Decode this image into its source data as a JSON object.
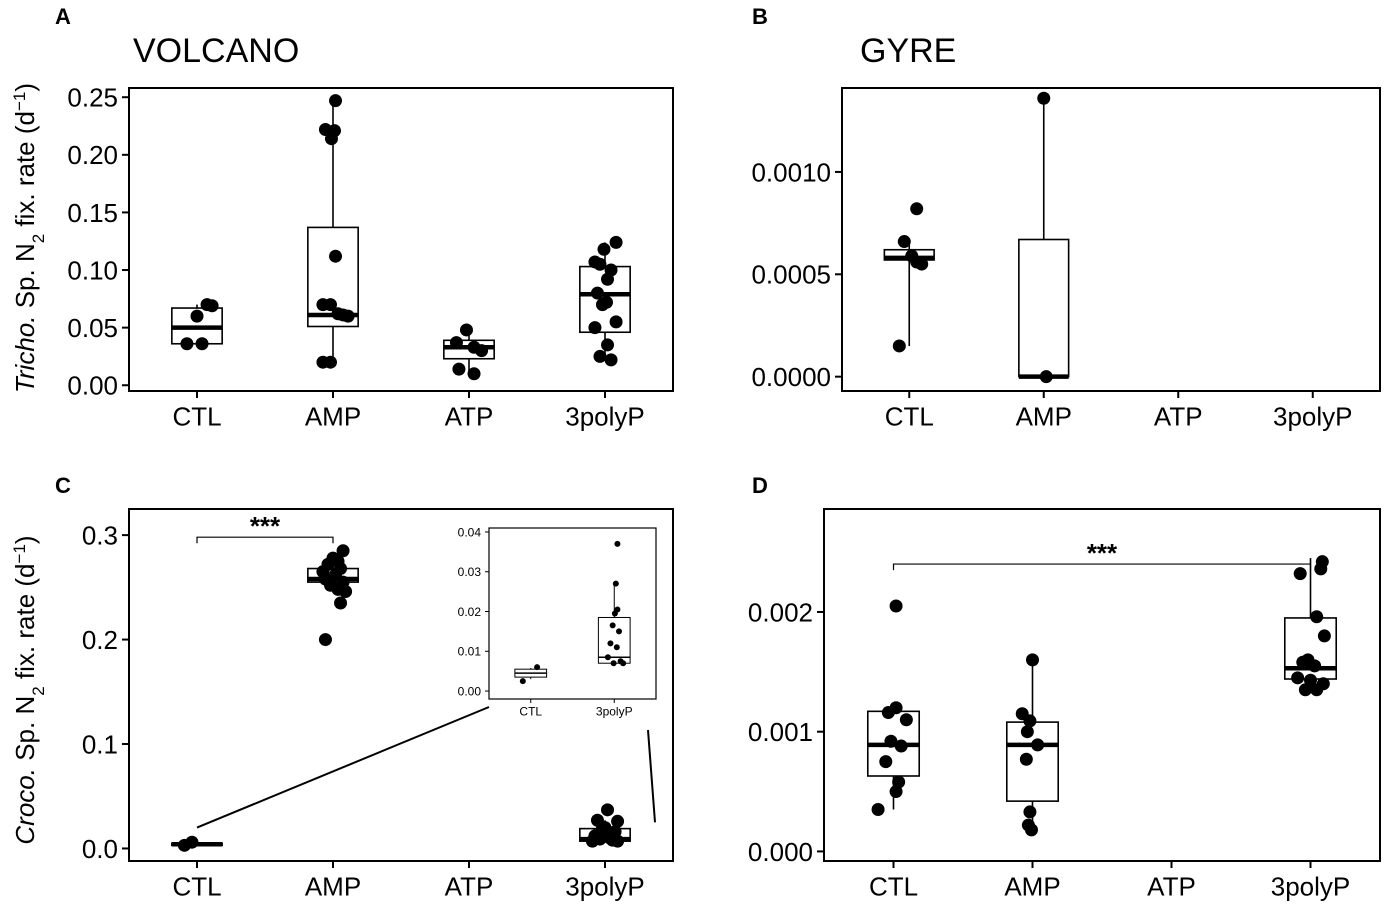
{
  "figure": {
    "ylabel_top": {
      "italic": "Tricho.",
      "pre": " Sp. N",
      "sub": "2",
      "post": " fix. rate (d",
      "sup": "−1",
      "end": ")"
    },
    "ylabel_bottom": {
      "italic": "Croco.",
      "pre": " Sp. N",
      "sub": "2",
      "post": " fix. rate (d",
      "sup": "−1",
      "end": ")"
    }
  },
  "chart_data": [
    {
      "panel": "A",
      "type": "box",
      "title": "VOLCANO",
      "categories": [
        "CTL",
        "AMP",
        "ATP",
        "3polyP"
      ],
      "ylim": [
        -0.005,
        0.258
      ],
      "yticks": [
        0.0,
        0.05,
        0.1,
        0.15,
        0.2,
        0.25
      ],
      "ytick_labels": [
        "0.00",
        "0.05",
        "0.10",
        "0.15",
        "0.20",
        "0.25"
      ],
      "boxes": [
        {
          "category": "CTL",
          "min": 0.036,
          "q1": 0.036,
          "median": 0.05,
          "q3": 0.067,
          "max": 0.07
        },
        {
          "category": "AMP",
          "min": 0.02,
          "q1": 0.051,
          "median": 0.061,
          "q3": 0.137,
          "max": 0.247
        },
        {
          "category": "ATP",
          "min": 0.01,
          "q1": 0.023,
          "median": 0.033,
          "q3": 0.039,
          "max": 0.048
        },
        {
          "category": "3polyP",
          "min": 0.022,
          "q1": 0.046,
          "median": 0.079,
          "q3": 0.103,
          "max": 0.124
        }
      ],
      "points": [
        {
          "category": "CTL",
          "y": 0.06,
          "jitter": 0.0
        },
        {
          "category": "CTL",
          "y": 0.07,
          "jitter": 0.2
        },
        {
          "category": "CTL",
          "y": 0.069,
          "jitter": 0.3
        },
        {
          "category": "CTL",
          "y": 0.036,
          "jitter": -0.2
        },
        {
          "category": "CTL",
          "y": 0.036,
          "jitter": 0.1
        },
        {
          "category": "AMP",
          "y": 0.247,
          "jitter": 0.05
        },
        {
          "category": "AMP",
          "y": 0.222,
          "jitter": -0.15
        },
        {
          "category": "AMP",
          "y": 0.221,
          "jitter": 0.03
        },
        {
          "category": "AMP",
          "y": 0.214,
          "jitter": -0.03
        },
        {
          "category": "AMP",
          "y": 0.112,
          "jitter": 0.05
        },
        {
          "category": "AMP",
          "y": 0.07,
          "jitter": -0.2
        },
        {
          "category": "AMP",
          "y": 0.07,
          "jitter": -0.05
        },
        {
          "category": "AMP",
          "y": 0.062,
          "jitter": 0.1
        },
        {
          "category": "AMP",
          "y": 0.061,
          "jitter": 0.2
        },
        {
          "category": "AMP",
          "y": 0.06,
          "jitter": 0.3
        },
        {
          "category": "AMP",
          "y": 0.02,
          "jitter": -0.2
        },
        {
          "category": "AMP",
          "y": 0.02,
          "jitter": -0.05
        },
        {
          "category": "ATP",
          "y": 0.048,
          "jitter": -0.05
        },
        {
          "category": "ATP",
          "y": 0.037,
          "jitter": -0.25
        },
        {
          "category": "ATP",
          "y": 0.033,
          "jitter": 0.1
        },
        {
          "category": "ATP",
          "y": 0.03,
          "jitter": 0.25
        },
        {
          "category": "ATP",
          "y": 0.014,
          "jitter": -0.2
        },
        {
          "category": "ATP",
          "y": 0.01,
          "jitter": 0.1
        },
        {
          "category": "3polyP",
          "y": 0.124,
          "jitter": 0.22
        },
        {
          "category": "3polyP",
          "y": 0.118,
          "jitter": -0.02
        },
        {
          "category": "3polyP",
          "y": 0.107,
          "jitter": -0.2
        },
        {
          "category": "3polyP",
          "y": 0.105,
          "jitter": -0.1
        },
        {
          "category": "3polyP",
          "y": 0.1,
          "jitter": 0.12
        },
        {
          "category": "3polyP",
          "y": 0.092,
          "jitter": 0.05
        },
        {
          "category": "3polyP",
          "y": 0.08,
          "jitter": -0.15
        },
        {
          "category": "3polyP",
          "y": 0.072,
          "jitter": 0.03
        },
        {
          "category": "3polyP",
          "y": 0.07,
          "jitter": -0.05
        },
        {
          "category": "3polyP",
          "y": 0.055,
          "jitter": 0.22
        },
        {
          "category": "3polyP",
          "y": 0.05,
          "jitter": -0.2
        },
        {
          "category": "3polyP",
          "y": 0.035,
          "jitter": 0.05
        },
        {
          "category": "3polyP",
          "y": 0.025,
          "jitter": -0.1
        },
        {
          "category": "3polyP",
          "y": 0.022,
          "jitter": 0.12
        }
      ]
    },
    {
      "panel": "B",
      "type": "box",
      "title": "GYRE",
      "categories": [
        "CTL",
        "AMP",
        "ATP",
        "3polyP"
      ],
      "ylim": [
        -7e-05,
        0.00141
      ],
      "yticks": [
        0.0,
        0.0005,
        0.001
      ],
      "ytick_labels": [
        "0.0000",
        "0.0005",
        "0.0010"
      ],
      "boxes": [
        {
          "category": "CTL",
          "min": 0.00015,
          "q1": 0.00057,
          "median": 0.00058,
          "q3": 0.00062,
          "max": 0.00066
        },
        {
          "category": "AMP",
          "min": 0.0,
          "q1": 0.0,
          "median": 0.0,
          "q3": 0.00067,
          "max": 0.00136
        }
      ],
      "points": [
        {
          "category": "CTL",
          "y": 0.00082,
          "jitter": 0.15
        },
        {
          "category": "CTL",
          "y": 0.00066,
          "jitter": -0.1
        },
        {
          "category": "CTL",
          "y": 0.00059,
          "jitter": 0.05
        },
        {
          "category": "CTL",
          "y": 0.00056,
          "jitter": 0.15
        },
        {
          "category": "CTL",
          "y": 0.00055,
          "jitter": 0.25
        },
        {
          "category": "CTL",
          "y": 0.00015,
          "jitter": -0.2
        },
        {
          "category": "AMP",
          "y": 0.00136,
          "jitter": 0.0
        },
        {
          "category": "AMP",
          "y": 0.0,
          "jitter": 0.05
        }
      ]
    },
    {
      "panel": "C",
      "type": "box",
      "categories": [
        "CTL",
        "AMP",
        "ATP",
        "3polyP"
      ],
      "ylim": [
        -0.012,
        0.325
      ],
      "yticks": [
        0.0,
        0.1,
        0.2,
        0.3
      ],
      "ytick_labels": [
        "0.0",
        "0.1",
        "0.2",
        "0.3"
      ],
      "annotation": {
        "text": "***",
        "from": "CTL",
        "to": "AMP",
        "y": 0.298
      },
      "boxes": [
        {
          "category": "CTL",
          "min": 0.003,
          "q1": 0.003,
          "median": 0.004,
          "q3": 0.005,
          "max": 0.006
        },
        {
          "category": "AMP",
          "min": 0.25,
          "q1": 0.255,
          "median": 0.258,
          "q3": 0.268,
          "max": 0.282
        },
        {
          "category": "3polyP",
          "min": 0.006,
          "q1": 0.007,
          "median": 0.009,
          "q3": 0.019,
          "max": 0.027
        }
      ],
      "points": [
        {
          "category": "CTL",
          "y": 0.006,
          "jitter": -0.1
        },
        {
          "category": "CTL",
          "y": 0.003,
          "jitter": -0.25
        },
        {
          "category": "AMP",
          "y": 0.285,
          "jitter": 0.2
        },
        {
          "category": "AMP",
          "y": 0.278,
          "jitter": 0.0
        },
        {
          "category": "AMP",
          "y": 0.275,
          "jitter": 0.1
        },
        {
          "category": "AMP",
          "y": 0.272,
          "jitter": -0.1
        },
        {
          "category": "AMP",
          "y": 0.268,
          "jitter": 0.15
        },
        {
          "category": "AMP",
          "y": 0.265,
          "jitter": -0.2
        },
        {
          "category": "AMP",
          "y": 0.262,
          "jitter": 0.05
        },
        {
          "category": "AMP",
          "y": 0.258,
          "jitter": -0.15
        },
        {
          "category": "AMP",
          "y": 0.255,
          "jitter": 0.2
        },
        {
          "category": "AMP",
          "y": 0.252,
          "jitter": -0.05
        },
        {
          "category": "AMP",
          "y": 0.248,
          "jitter": 0.1
        },
        {
          "category": "AMP",
          "y": 0.246,
          "jitter": 0.25
        },
        {
          "category": "AMP",
          "y": 0.235,
          "jitter": 0.15
        },
        {
          "category": "AMP",
          "y": 0.2,
          "jitter": -0.15
        },
        {
          "category": "3polyP",
          "y": 0.037,
          "jitter": 0.05
        },
        {
          "category": "3polyP",
          "y": 0.027,
          "jitter": -0.15
        },
        {
          "category": "3polyP",
          "y": 0.026,
          "jitter": 0.25
        },
        {
          "category": "3polyP",
          "y": 0.02,
          "jitter": 0.0
        },
        {
          "category": "3polyP",
          "y": 0.019,
          "jitter": -0.05
        },
        {
          "category": "3polyP",
          "y": 0.016,
          "jitter": 0.2
        },
        {
          "category": "3polyP",
          "y": 0.012,
          "jitter": -0.2
        },
        {
          "category": "3polyP",
          "y": 0.01,
          "jitter": 0.1
        },
        {
          "category": "3polyP",
          "y": 0.009,
          "jitter": -0.1
        },
        {
          "category": "3polyP",
          "y": 0.008,
          "jitter": 0.15
        },
        {
          "category": "3polyP",
          "y": 0.007,
          "jitter": -0.25
        },
        {
          "category": "3polyP",
          "y": 0.007,
          "jitter": 0.25
        }
      ],
      "inset": {
        "categories": [
          "CTL",
          "3polyP"
        ],
        "ylim": [
          -0.002,
          0.041
        ],
        "yticks": [
          0.0,
          0.01,
          0.02,
          0.03,
          0.04
        ],
        "ytick_labels": [
          "0.00",
          "0.01",
          "0.02",
          "0.03",
          "0.04"
        ],
        "boxes": [
          {
            "category": "CTL",
            "min": 0.003,
            "q1": 0.0035,
            "median": 0.0045,
            "q3": 0.0055,
            "max": 0.0058
          },
          {
            "category": "3polyP",
            "min": 0.0065,
            "q1": 0.007,
            "median": 0.0085,
            "q3": 0.0185,
            "max": 0.027
          }
        ],
        "points": [
          {
            "category": "CTL",
            "y": 0.006,
            "jitter": 0.2
          },
          {
            "category": "CTL",
            "y": 0.0025,
            "jitter": -0.25
          },
          {
            "category": "3polyP",
            "y": 0.037,
            "jitter": 0.1
          },
          {
            "category": "3polyP",
            "y": 0.027,
            "jitter": 0.05
          },
          {
            "category": "3polyP",
            "y": 0.0205,
            "jitter": 0.1
          },
          {
            "category": "3polyP",
            "y": 0.0195,
            "jitter": 0.02
          },
          {
            "category": "3polyP",
            "y": 0.0165,
            "jitter": -0.05
          },
          {
            "category": "3polyP",
            "y": 0.015,
            "jitter": 0.15
          },
          {
            "category": "3polyP",
            "y": 0.012,
            "jitter": -0.12
          },
          {
            "category": "3polyP",
            "y": 0.011,
            "jitter": 0.08
          },
          {
            "category": "3polyP",
            "y": 0.0085,
            "jitter": -0.2
          },
          {
            "category": "3polyP",
            "y": 0.0075,
            "jitter": 0.2
          },
          {
            "category": "3polyP",
            "y": 0.007,
            "jitter": -0.02
          },
          {
            "category": "3polyP",
            "y": 0.007,
            "jitter": 0.28
          }
        ]
      }
    },
    {
      "panel": "D",
      "type": "box",
      "categories": [
        "CTL",
        "AMP",
        "ATP",
        "3polyP"
      ],
      "ylim": [
        -8e-05,
        0.00286
      ],
      "yticks": [
        0.0,
        0.001,
        0.002
      ],
      "ytick_labels": [
        "0.000",
        "0.001",
        "0.002"
      ],
      "annotation": {
        "text": "***",
        "from": "CTL",
        "to": "3polyP",
        "y": 0.0024
      },
      "boxes": [
        {
          "category": "CTL",
          "min": 0.00035,
          "q1": 0.00063,
          "median": 0.00089,
          "q3": 0.00117,
          "max": 0.0012
        },
        {
          "category": "AMP",
          "min": 0.0002,
          "q1": 0.00042,
          "median": 0.00089,
          "q3": 0.00108,
          "max": 0.0016
        },
        {
          "category": "3polyP",
          "min": 0.00135,
          "q1": 0.00144,
          "median": 0.00153,
          "q3": 0.00195,
          "max": 0.00245
        }
      ],
      "points": [
        {
          "category": "CTL",
          "y": 0.00205,
          "jitter": 0.05
        },
        {
          "category": "CTL",
          "y": 0.0012,
          "jitter": 0.05
        },
        {
          "category": "CTL",
          "y": 0.00116,
          "jitter": -0.1
        },
        {
          "category": "CTL",
          "y": 0.0011,
          "jitter": 0.25
        },
        {
          "category": "CTL",
          "y": 0.00092,
          "jitter": -0.05
        },
        {
          "category": "CTL",
          "y": 0.00088,
          "jitter": 0.15
        },
        {
          "category": "CTL",
          "y": 0.00075,
          "jitter": -0.15
        },
        {
          "category": "CTL",
          "y": 0.00058,
          "jitter": 0.1
        },
        {
          "category": "CTL",
          "y": 0.0005,
          "jitter": 0.05
        },
        {
          "category": "CTL",
          "y": 0.00035,
          "jitter": -0.3
        },
        {
          "category": "AMP",
          "y": 0.0016,
          "jitter": 0.0
        },
        {
          "category": "AMP",
          "y": 0.00115,
          "jitter": -0.2
        },
        {
          "category": "AMP",
          "y": 0.00109,
          "jitter": -0.05
        },
        {
          "category": "AMP",
          "y": 0.001,
          "jitter": -0.1
        },
        {
          "category": "AMP",
          "y": 0.00089,
          "jitter": 0.1
        },
        {
          "category": "AMP",
          "y": 0.00077,
          "jitter": -0.12
        },
        {
          "category": "AMP",
          "y": 0.00033,
          "jitter": -0.05
        },
        {
          "category": "AMP",
          "y": 0.00022,
          "jitter": -0.08
        },
        {
          "category": "AMP",
          "y": 0.00018,
          "jitter": -0.02
        },
        {
          "category": "3polyP",
          "y": 0.00242,
          "jitter": 0.23
        },
        {
          "category": "3polyP",
          "y": 0.00236,
          "jitter": 0.2
        },
        {
          "category": "3polyP",
          "y": 0.00232,
          "jitter": -0.2
        },
        {
          "category": "3polyP",
          "y": 0.00196,
          "jitter": 0.12
        },
        {
          "category": "3polyP",
          "y": 0.0018,
          "jitter": 0.27
        },
        {
          "category": "3polyP",
          "y": 0.0016,
          "jitter": -0.05
        },
        {
          "category": "3polyP",
          "y": 0.00158,
          "jitter": -0.15
        },
        {
          "category": "3polyP",
          "y": 0.00155,
          "jitter": 0.08
        },
        {
          "category": "3polyP",
          "y": 0.00145,
          "jitter": -0.25
        },
        {
          "category": "3polyP",
          "y": 0.00143,
          "jitter": 0.0
        },
        {
          "category": "3polyP",
          "y": 0.0014,
          "jitter": 0.25
        },
        {
          "category": "3polyP",
          "y": 0.00135,
          "jitter": 0.12
        },
        {
          "category": "3polyP",
          "y": 0.00135,
          "jitter": -0.1
        }
      ]
    }
  ]
}
